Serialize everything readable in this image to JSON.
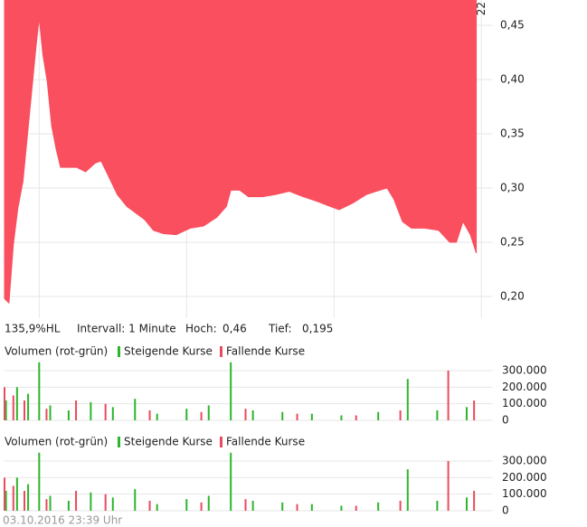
{
  "chart_data": [
    {
      "type": "area",
      "x": [
        15.53,
        15.59,
        15.65,
        15.71,
        15.78,
        15.84,
        15.9,
        15.96,
        16.0,
        16.05,
        16.11,
        16.17,
        16.23,
        16.29,
        16.39,
        16.51,
        16.63,
        16.76,
        16.84,
        16.94,
        17.06,
        17.19,
        17.31,
        17.43,
        17.55,
        17.68,
        17.86,
        18.05,
        18.23,
        18.41,
        18.54,
        18.6,
        18.72,
        18.84,
        19.03,
        19.21,
        19.39,
        19.58,
        19.76,
        19.95,
        20.07,
        20.25,
        20.44,
        20.62,
        20.72,
        20.81,
        20.93,
        21.05,
        21.23,
        21.42,
        21.57,
        21.66,
        21.75,
        21.85,
        21.93
      ],
      "values": [
        0.198,
        0.194,
        0.248,
        0.281,
        0.306,
        0.348,
        0.39,
        0.432,
        0.457,
        0.423,
        0.398,
        0.357,
        0.336,
        0.319,
        0.319,
        0.319,
        0.315,
        0.323,
        0.325,
        0.311,
        0.294,
        0.283,
        0.277,
        0.271,
        0.261,
        0.258,
        0.257,
        0.263,
        0.265,
        0.273,
        0.283,
        0.298,
        0.298,
        0.292,
        0.292,
        0.294,
        0.297,
        0.292,
        0.288,
        0.283,
        0.28,
        0.286,
        0.294,
        0.298,
        0.3,
        0.29,
        0.269,
        0.263,
        0.263,
        0.261,
        0.25,
        0.25,
        0.269,
        0.257,
        0.24
      ],
      "color": "#fa4f5f",
      "xlim": [
        15.53,
        22.15
      ],
      "xticks": [
        16,
        18,
        20,
        22
      ],
      "ylim": [
        0.18,
        0.4733
      ],
      "yticks": [
        {
          "value": 0.2,
          "label": "0,20"
        },
        {
          "value": 0.25,
          "label": "0,25"
        },
        {
          "value": 0.3,
          "label": "0,30"
        },
        {
          "value": 0.35,
          "label": "0,35"
        },
        {
          "value": 0.4,
          "label": "0,40"
        },
        {
          "value": 0.45,
          "label": "0,45"
        }
      ],
      "grid": true
    },
    {
      "type": "bar",
      "title": "Volumen (rot-grün)",
      "xlim": [
        15.53,
        22.15
      ],
      "ylim": [
        0,
        360000
      ],
      "yticks": [
        0,
        {
          "value": 100000,
          "label": "100.000"
        },
        {
          "value": 200000,
          "label": "200.000"
        },
        {
          "value": 300000,
          "label": "300.000"
        }
      ],
      "grid": true,
      "series": [
        {
          "name": "Steigende Kurse",
          "color": "#2db52d",
          "x": [
            15.55,
            15.7,
            15.85,
            16.0,
            16.15,
            16.4,
            16.7,
            17.0,
            17.3,
            17.6,
            18.0,
            18.3,
            18.6,
            18.9,
            19.3,
            19.7,
            20.1,
            20.6,
            21.0,
            21.4,
            21.8
          ],
          "values": [
            120000,
            200000,
            160000,
            350000,
            90000,
            60000,
            110000,
            80000,
            130000,
            40000,
            70000,
            90000,
            350000,
            60000,
            50000,
            40000,
            30000,
            50000,
            250000,
            60000,
            80000
          ]
        },
        {
          "name": "Fallende Kurse",
          "color": "#e84c5c",
          "x": [
            15.53,
            15.65,
            15.8,
            16.1,
            16.5,
            16.9,
            17.5,
            18.2,
            18.8,
            19.5,
            20.3,
            20.9,
            21.55,
            21.9
          ],
          "values": [
            200000,
            150000,
            120000,
            70000,
            120000,
            100000,
            60000,
            50000,
            70000,
            40000,
            30000,
            60000,
            300000,
            120000
          ]
        }
      ]
    },
    {
      "type": "bar",
      "title": "Volumen (rot-grün)",
      "xlim": [
        15.53,
        22.15
      ],
      "ylim": [
        0,
        360000
      ],
      "yticks": [
        0,
        {
          "value": 100000,
          "label": "100.000"
        },
        {
          "value": 200000,
          "label": "200.000"
        },
        {
          "value": 300000,
          "label": "300.000"
        }
      ],
      "grid": true,
      "series": [
        {
          "name": "Steigende Kurse",
          "color": "#2db52d",
          "x": [
            15.55,
            15.7,
            15.85,
            16.0,
            16.15,
            16.4,
            16.7,
            17.0,
            17.3,
            17.6,
            18.0,
            18.3,
            18.6,
            18.9,
            19.3,
            19.7,
            20.1,
            20.6,
            21.0,
            21.4,
            21.8
          ],
          "values": [
            120000,
            200000,
            160000,
            350000,
            90000,
            60000,
            110000,
            80000,
            130000,
            40000,
            70000,
            90000,
            350000,
            60000,
            50000,
            40000,
            30000,
            50000,
            250000,
            60000,
            80000
          ]
        },
        {
          "name": "Fallende Kurse",
          "color": "#e84c5c",
          "x": [
            15.53,
            15.65,
            15.8,
            16.1,
            16.5,
            16.9,
            17.5,
            18.2,
            18.8,
            19.5,
            20.3,
            20.9,
            21.55,
            21.9
          ],
          "values": [
            200000,
            150000,
            120000,
            70000,
            120000,
            100000,
            60000,
            50000,
            70000,
            40000,
            30000,
            60000,
            300000,
            120000
          ]
        }
      ]
    }
  ],
  "info": {
    "range": "135,9%HL",
    "interval": "Intervall: 1 Minute",
    "high_label": "Hoch:",
    "high": "0,46",
    "low_label": "Tief:",
    "low": "0,195"
  },
  "timestamp": "03.10.2016 23:39 Uhr"
}
